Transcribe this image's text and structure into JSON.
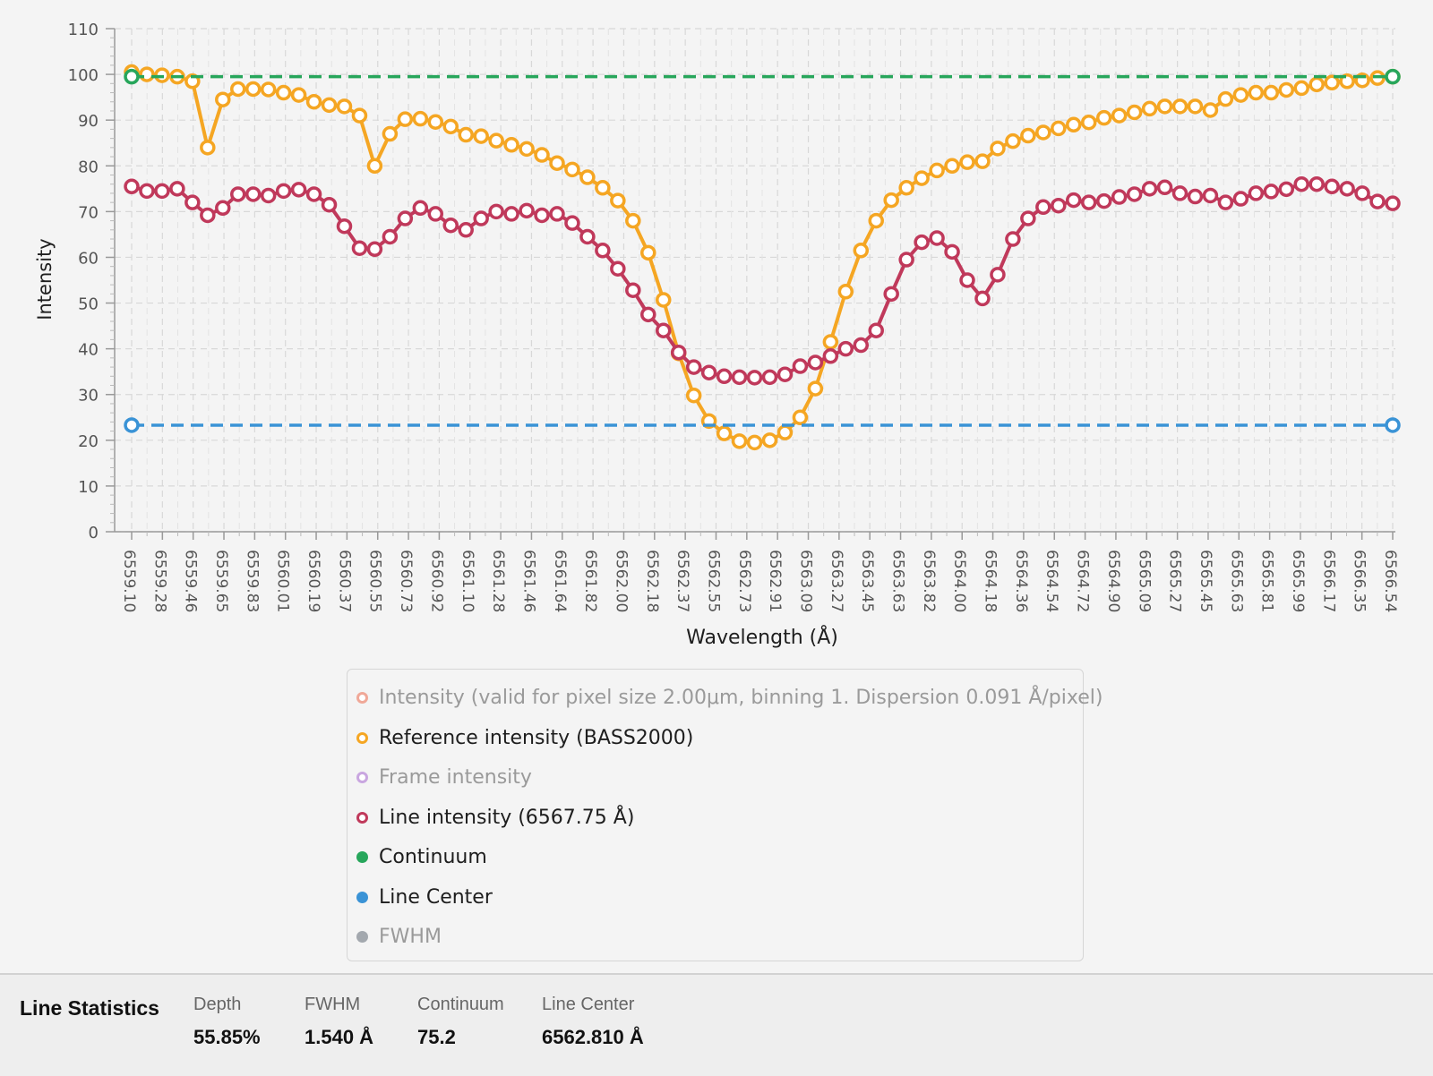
{
  "chart_data": {
    "type": "line",
    "xlabel": "Wavelength (Å)",
    "ylabel": "Intensity",
    "ylim": [
      0,
      110
    ],
    "yticks": [
      0,
      10,
      20,
      30,
      40,
      50,
      60,
      70,
      80,
      90,
      100,
      110
    ],
    "grid": true,
    "legend_placement": "bottom",
    "x_tick_labels": [
      "6559.10",
      "6559.28",
      "6559.46",
      "6559.65",
      "6559.83",
      "6560.01",
      "6560.19",
      "6560.37",
      "6560.55",
      "6560.73",
      "6560.92",
      "6561.10",
      "6561.28",
      "6561.46",
      "6561.64",
      "6561.82",
      "6562.00",
      "6562.18",
      "6562.37",
      "6562.55",
      "6562.73",
      "6562.91",
      "6563.09",
      "6563.27",
      "6563.45",
      "6563.63",
      "6563.82",
      "6564.00",
      "6564.18",
      "6564.36",
      "6564.54",
      "6564.72",
      "6564.90",
      "6565.09",
      "6565.27",
      "6565.45",
      "6565.63",
      "6565.81",
      "6565.99",
      "6566.17",
      "6566.35",
      "6566.54"
    ],
    "series": [
      {
        "name": "Reference intensity (BASS2000)",
        "color": "#f5a623",
        "line": "solid",
        "marker": "hollow",
        "values": [
          100.5,
          100,
          99.8,
          99.5,
          98.5,
          84,
          94.5,
          96.8,
          96.8,
          96.7,
          96,
          95.5,
          94,
          93.3,
          93,
          91,
          80,
          87,
          90.2,
          90.3,
          89.6,
          88.6,
          86.8,
          86.5,
          85.5,
          84.6,
          83.7,
          82.4,
          80.6,
          79.2,
          77.5,
          75.2,
          72.4,
          68,
          61,
          50.7,
          39,
          29.8,
          24.2,
          21.5,
          19.8,
          19.5,
          20,
          21.7,
          25,
          31.3,
          41.5,
          52.5,
          61.5,
          68,
          72.5,
          75.2,
          77.3,
          79,
          80,
          80.8,
          81,
          83.8,
          85.4,
          86.6,
          87.3,
          88.2,
          89,
          89.5,
          90.5,
          91,
          91.7,
          92.5,
          93,
          93,
          93,
          92.2,
          94.6,
          95.5,
          96,
          96,
          96.6,
          97,
          97.8,
          98.2,
          98.5,
          98.7,
          99.2,
          99.5
        ]
      },
      {
        "name": "Line intensity (6567.75 Å)",
        "color": "#c0395b",
        "line": "solid",
        "marker": "hollow",
        "values": [
          75.5,
          74.5,
          74.5,
          75,
          72,
          69.2,
          70.8,
          73.8,
          73.8,
          73.5,
          74.5,
          74.8,
          73.8,
          71.5,
          66.8,
          62,
          61.8,
          64.5,
          68.5,
          70.8,
          69.5,
          67,
          66,
          68.5,
          70,
          69.5,
          70.2,
          69.2,
          69.5,
          67.5,
          64.5,
          61.5,
          57.5,
          52.8,
          47.5,
          44,
          39.2,
          36,
          34.8,
          34,
          33.8,
          33.7,
          33.8,
          34.4,
          36.2,
          37,
          38.4,
          40,
          40.8,
          44,
          52,
          59.5,
          63.3,
          64.2,
          61.2,
          55,
          51,
          56.2,
          64,
          68.5,
          71,
          71.3,
          72.5,
          72,
          72.3,
          73.2,
          73.8,
          75,
          75.3,
          74,
          73.3,
          73.5,
          72,
          72.8,
          74,
          74.4,
          74.9,
          76,
          76,
          75.5,
          75,
          74,
          72.2,
          71.8
        ]
      },
      {
        "name": "Continuum",
        "color": "#27a65b",
        "line": "dashed",
        "endpoint_markers": "hollow",
        "values": [
          99.5,
          99.5
        ]
      },
      {
        "name": "Line Center",
        "color": "#3a93d6",
        "line": "dashed",
        "endpoint_markers": "hollow",
        "values": [
          23.3,
          23.3
        ]
      }
    ]
  },
  "legend": {
    "items": [
      {
        "label": "Intensity (valid for pixel size 2.00μm, binning 1. Dispersion 0.091  Å/pixel)",
        "color": "#f0a898",
        "style": "hollow",
        "dim": true
      },
      {
        "label": "Reference intensity (BASS2000)",
        "color": "#f5a623",
        "style": "hollow",
        "dim": false
      },
      {
        "label": "Frame intensity",
        "color": "#c9a6e0",
        "style": "hollow",
        "dim": true
      },
      {
        "label": "Line intensity (6567.75 Å)",
        "color": "#c0395b",
        "style": "hollow",
        "dim": false
      },
      {
        "label": "Continuum",
        "color": "#27a65b",
        "style": "filled",
        "dim": false
      },
      {
        "label": "Line Center",
        "color": "#3a93d6",
        "style": "filled",
        "dim": false
      },
      {
        "label": "FWHM",
        "color": "#a3a8ae",
        "style": "filled",
        "dim": true
      }
    ]
  },
  "stats": {
    "title": "Line Statistics",
    "depth_label": "Depth",
    "depth_value": "55.85%",
    "fwhm_label": "FWHM",
    "fwhm_value": "1.540 Å",
    "continuum_label": "Continuum",
    "continuum_value": "75.2",
    "center_label": "Line Center",
    "center_value": "6562.810 Å"
  }
}
